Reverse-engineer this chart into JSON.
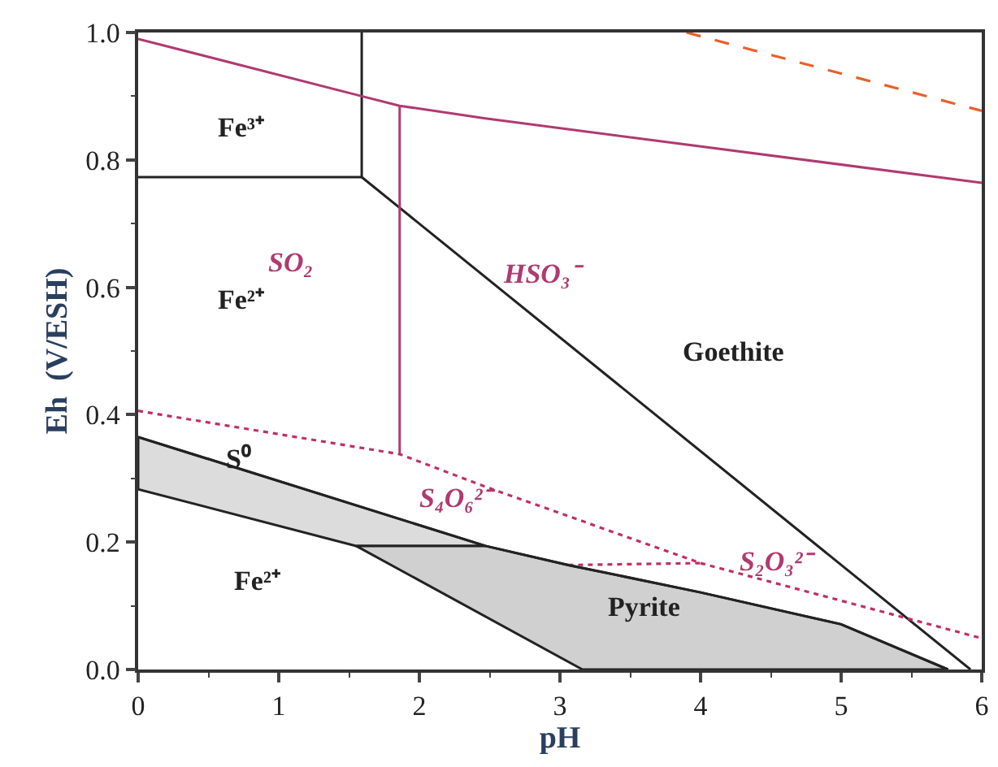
{
  "chart_data": {
    "type": "line",
    "xlabel": "pH",
    "ylabel": "Eh  (V/ESH)",
    "xlim": [
      0,
      6
    ],
    "xticks": [
      0,
      1,
      2,
      3,
      4,
      5,
      6
    ],
    "ylim": [
      0,
      1
    ],
    "yticks": [
      {
        "value": 0,
        "label": "0.0"
      },
      {
        "value": 0.2,
        "label": "0.2"
      },
      {
        "value": 0.4,
        "label": "0.4"
      },
      {
        "value": 0.6,
        "label": "0.6"
      },
      {
        "value": 0.8,
        "label": "0.8"
      },
      {
        "value": 1,
        "label": "1.0"
      }
    ],
    "marker": "none",
    "series": [
      {
        "type": "area",
        "color": "#dcdcdc",
        "x": [
          0,
          2.47,
          1.55,
          0,
          0
        ],
        "values": [
          0.365,
          0.194,
          0.194,
          0.283,
          0.365
        ]
      },
      {
        "type": "area",
        "color": "#d0d0d0",
        "x": [
          1.55,
          2.47,
          3.06,
          4.0,
          5.0,
          5.76,
          3.16,
          1.55
        ],
        "values": [
          0.194,
          0.194,
          0.164,
          0.121,
          0.071,
          0,
          0,
          0.194
        ]
      },
      {
        "color": "#222222",
        "line_style": "solid",
        "x": [
          0,
          1.59,
          1.59
        ],
        "values": [
          0.773,
          0.773,
          1.0
        ]
      },
      {
        "color": "#222222",
        "line_style": "solid",
        "x": [
          1.59,
          5.92
        ],
        "values": [
          0.773,
          0
        ]
      },
      {
        "color": "#b03a70",
        "line_style": "solid",
        "x": [
          0,
          1.59,
          1.86,
          2.47,
          6
        ],
        "values": [
          0.99,
          0.9,
          0.885,
          0.865,
          0.764
        ]
      },
      {
        "color": "#b03a70",
        "line_style": "solid",
        "x": [
          1.86,
          1.86
        ],
        "values": [
          0.885,
          0.338
        ]
      },
      {
        "color": "#e8602c",
        "line_style": "dashed",
        "x": [
          3.9,
          6
        ],
        "values": [
          1.0,
          0.877
        ]
      },
      {
        "color": "#c03060",
        "line_style": "dotted",
        "x": [
          0,
          1.86,
          2.47,
          4.0,
          6
        ],
        "values": [
          0.406,
          0.338,
          0.287,
          0.167,
          0.049
        ]
      },
      {
        "color": "#c03060",
        "line_style": "dotted",
        "x": [
          3.06,
          4.0
        ],
        "values": [
          0.164,
          0.167
        ]
      },
      {
        "color": "#222222",
        "line_style": "solid",
        "x": [
          0,
          2.47,
          3.06,
          4.0,
          5.0,
          5.76
        ],
        "values": [
          0.365,
          0.194,
          0.164,
          0.121,
          0.071,
          0
        ]
      }
    ],
    "annotations": [
      "Fe³⁺",
      "SO₂",
      "Fe²⁺",
      "HSO₃⁻",
      "Goethite",
      "S⁰",
      "S₄O₆²⁻",
      "S₂O₃²⁻",
      "Fe²⁺",
      "Pyrite"
    ]
  }
}
